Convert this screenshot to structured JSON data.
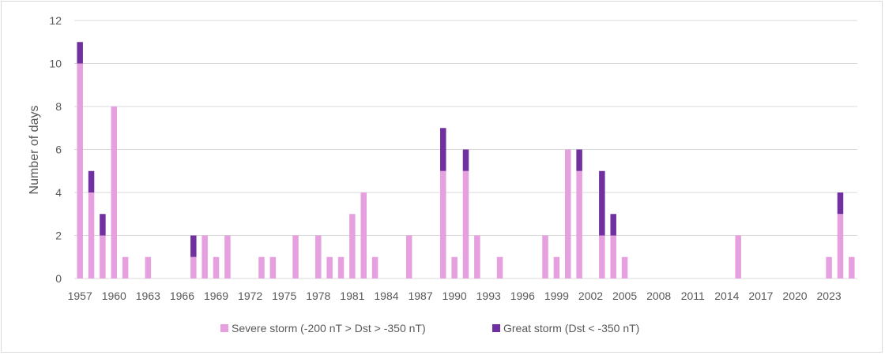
{
  "chart_data": {
    "type": "bar",
    "stacked": true,
    "title": "",
    "xlabel": "",
    "ylabel": "Number of days",
    "ylim": [
      0,
      12
    ],
    "yticks": [
      0,
      2,
      4,
      6,
      8,
      10,
      12
    ],
    "grid": true,
    "legend_position": "bottom",
    "categories": [
      1957,
      1958,
      1959,
      1960,
      1961,
      1962,
      1963,
      1964,
      1965,
      1966,
      1967,
      1968,
      1969,
      1970,
      1971,
      1972,
      1973,
      1974,
      1975,
      1976,
      1977,
      1978,
      1979,
      1980,
      1981,
      1982,
      1983,
      1984,
      1985,
      1986,
      1987,
      1988,
      1989,
      1990,
      1991,
      1992,
      1993,
      1994,
      1995,
      1996,
      1997,
      1998,
      1999,
      2000,
      2001,
      2002,
      2003,
      2004,
      2005,
      2006,
      2007,
      2008,
      2009,
      2010,
      2011,
      2012,
      2013,
      2014,
      2015,
      2016,
      2017,
      2018,
      2019,
      2020,
      2021,
      2022,
      2023,
      2024,
      2025
    ],
    "x_tick_labels": [
      "1957",
      "1960",
      "1963",
      "1966",
      "1969",
      "1972",
      "1975",
      "1978",
      "1981",
      "1984",
      "1987",
      "1990",
      "1993",
      "1996",
      "1999",
      "2002",
      "2005",
      "2008",
      "2011",
      "2014",
      "2017",
      "2020",
      "2023"
    ],
    "series": [
      {
        "name": "Severe storm (-200 nT > Dst > -350 nT)",
        "color": "#e6a0e0",
        "values": [
          10,
          4,
          2,
          8,
          1,
          0,
          1,
          0,
          0,
          0,
          1,
          2,
          1,
          2,
          0,
          0,
          1,
          1,
          0,
          2,
          0,
          2,
          1,
          1,
          3,
          4,
          1,
          0,
          0,
          2,
          0,
          0,
          5,
          1,
          5,
          2,
          0,
          1,
          0,
          0,
          0,
          2,
          1,
          6,
          5,
          0,
          2,
          2,
          1,
          0,
          0,
          0,
          0,
          0,
          0,
          0,
          0,
          0,
          2,
          0,
          0,
          0,
          0,
          0,
          0,
          0,
          1,
          3,
          1
        ]
      },
      {
        "name": "Great storm (Dst < -350 nT)",
        "color": "#7030a0",
        "values": [
          1,
          1,
          1,
          0,
          0,
          0,
          0,
          0,
          0,
          0,
          1,
          0,
          0,
          0,
          0,
          0,
          0,
          0,
          0,
          0,
          0,
          0,
          0,
          0,
          0,
          0,
          0,
          0,
          0,
          0,
          0,
          0,
          2,
          0,
          1,
          0,
          0,
          0,
          0,
          0,
          0,
          0,
          0,
          0,
          1,
          0,
          3,
          1,
          0,
          0,
          0,
          0,
          0,
          0,
          0,
          0,
          0,
          0,
          0,
          0,
          0,
          0,
          0,
          0,
          0,
          0,
          0,
          1,
          0
        ]
      }
    ]
  }
}
